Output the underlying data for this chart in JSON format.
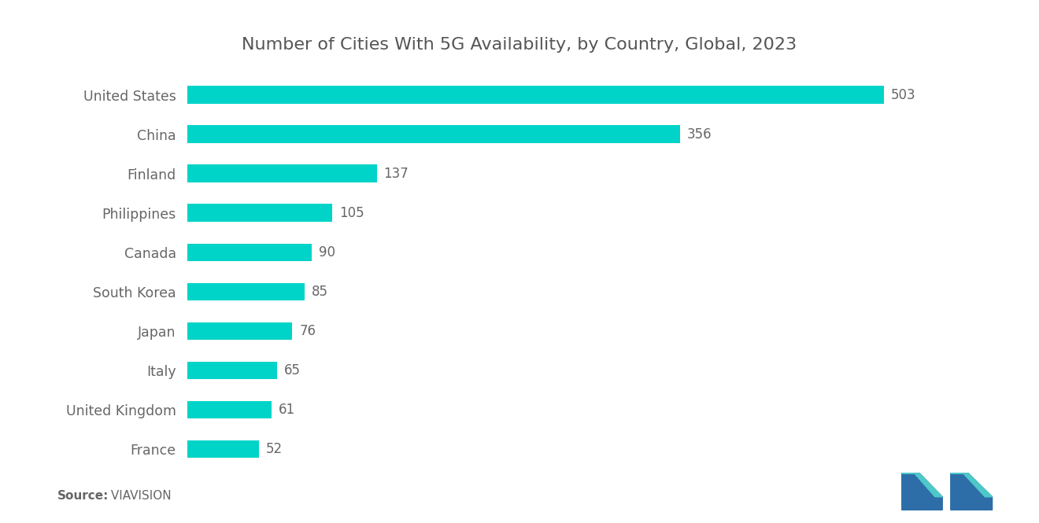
{
  "title": "Number of Cities With 5G Availability, by Country, Global, 2023",
  "countries": [
    "France",
    "United Kingdom",
    "Italy",
    "Japan",
    "South Korea",
    "Canada",
    "Philippines",
    "Finland",
    "China",
    "United States"
  ],
  "values": [
    52,
    61,
    65,
    76,
    85,
    90,
    105,
    137,
    356,
    503
  ],
  "bar_color": "#00D4C8",
  "value_color": "#666666",
  "label_color": "#666666",
  "title_color": "#555555",
  "background_color": "#ffffff",
  "source_bold": "Source:",
  "source_normal": " VIAVISION",
  "xlim": [
    0,
    570
  ],
  "bar_height": 0.45,
  "title_fontsize": 16,
  "label_fontsize": 12.5,
  "value_fontsize": 12,
  "source_fontsize": 11,
  "logo_blue": "#2D6DA8",
  "logo_teal": "#4EC8C8"
}
